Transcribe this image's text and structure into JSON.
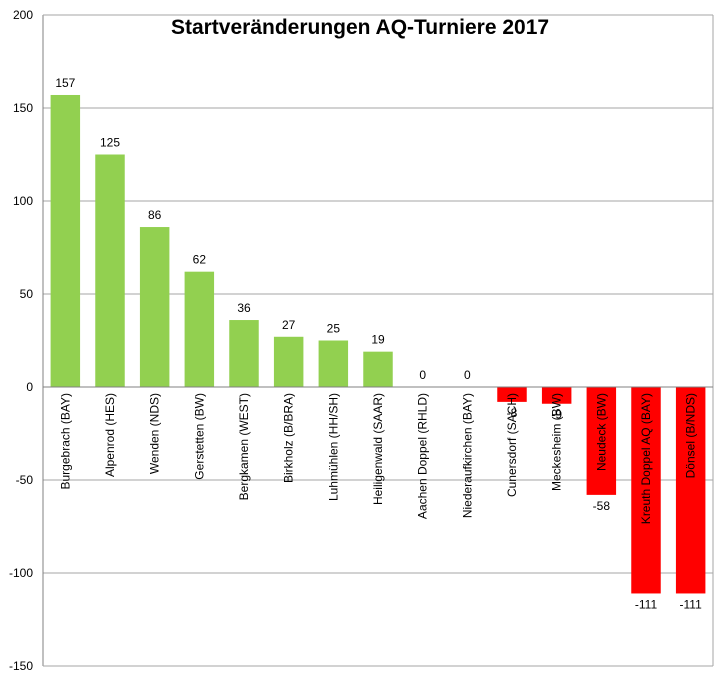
{
  "chart_data": {
    "type": "bar",
    "title": "Startveränderungen AQ-Turniere 2017",
    "xlabel": "",
    "ylabel": "",
    "ylim": [
      -150,
      200
    ],
    "yticks": [
      200,
      150,
      100,
      50,
      0,
      -50,
      -100,
      -150
    ],
    "grid": true,
    "legend": "none",
    "categories": [
      "Burgebrach (BAY)",
      "Alpenrod (HES)",
      "Wenden (NDS)",
      "Gerstetten (BW)",
      "Bergkamen (WEST)",
      "Birkholz (B/BRA)",
      "Luhmühlen (HH/SH)",
      "Heiligenwald (SAAR)",
      "Aachen Doppel (RHLD)",
      "Niederaufkirchen (BAY)",
      "Cunersdorf (SACH)",
      "Meckesheim (BW)",
      "Neudeck (BW)",
      "Kreuth Doppel AQ (BAY)",
      "Dönsel (B/NDS)"
    ],
    "values": [
      157,
      125,
      86,
      62,
      36,
      27,
      25,
      19,
      0,
      0,
      -8,
      -9,
      -58,
      -111,
      -111
    ],
    "data_labels": [
      "157",
      "125",
      "86",
      "62",
      "36",
      "27",
      "25",
      "19",
      "0",
      "0",
      "-8",
      "-9",
      "-58",
      "-111",
      "-111"
    ],
    "colors": {
      "positive": "#92d050",
      "negative": "#ff0000",
      "grid": "#a6a6a6",
      "axis": "#808080"
    }
  }
}
